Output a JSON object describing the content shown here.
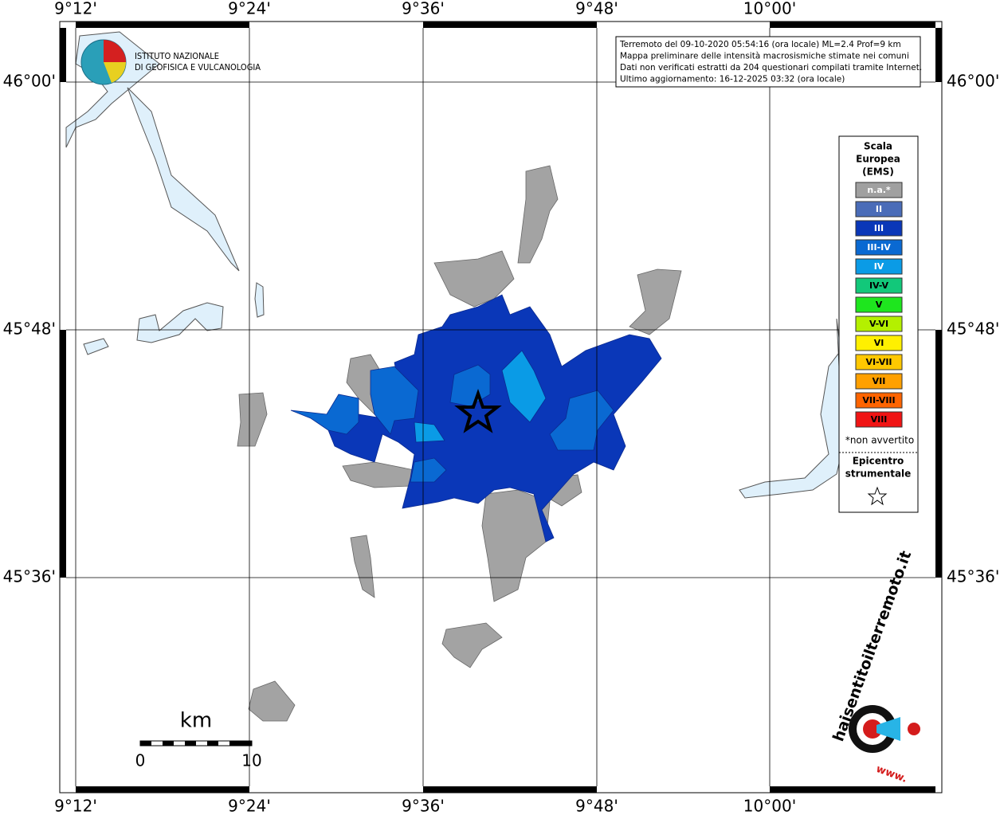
{
  "header": {
    "info_lines": [
      "Terremoto del 09-10-2020 05:54:16 (ora locale) ML=2.4 Prof=9 km",
      "Mappa preliminare delle intensità macrosismiche stimate nei comuni",
      "Dati non verificati estratti da 204 questionari compilati tramite Internet.",
      "Ultimo aggiornamento: 16-12-2025 03:32 (ora locale)"
    ]
  },
  "logo": {
    "lines": [
      "ISTITUTO NAZIONALE",
      "DI GEOFISICA E VULCANOLOGIA"
    ]
  },
  "map": {
    "lon_labels": [
      "9°12'",
      "9°24'",
      "9°36'",
      "9°48'",
      "10°00'"
    ],
    "lat_labels": [
      "46°00'",
      "45°48'",
      "45°36'"
    ]
  },
  "legend": {
    "title_lines": [
      "Scala",
      "Europea",
      "(EMS)"
    ],
    "items": [
      {
        "label": "n.a.*",
        "color": "#a0a0a0"
      },
      {
        "label": "II",
        "color": "#4a6cb8"
      },
      {
        "label": "III",
        "color": "#0a37b8"
      },
      {
        "label": "III-IV",
        "color": "#0a69d2"
      },
      {
        "label": "IV",
        "color": "#0a9be6"
      },
      {
        "label": "IV-V",
        "color": "#12c87a"
      },
      {
        "label": "V",
        "color": "#1ee61e"
      },
      {
        "label": "V-VI",
        "color": "#b4f000"
      },
      {
        "label": "VI",
        "color": "#fff000"
      },
      {
        "label": "VI-VII",
        "color": "#ffc800"
      },
      {
        "label": "VII",
        "color": "#ffa000"
      },
      {
        "label": "VII-VIII",
        "color": "#ff6400"
      },
      {
        "label": "VIII",
        "color": "#f01414"
      }
    ],
    "note": "*non avvertito",
    "epicenter_lines": [
      "Epicentro",
      "strumentale"
    ]
  },
  "scale_bar": {
    "unit": "km",
    "labels": [
      "0",
      "10"
    ]
  },
  "site_logo": {
    "text": "haisentitoilterremoto.it",
    "prefix": "www."
  }
}
